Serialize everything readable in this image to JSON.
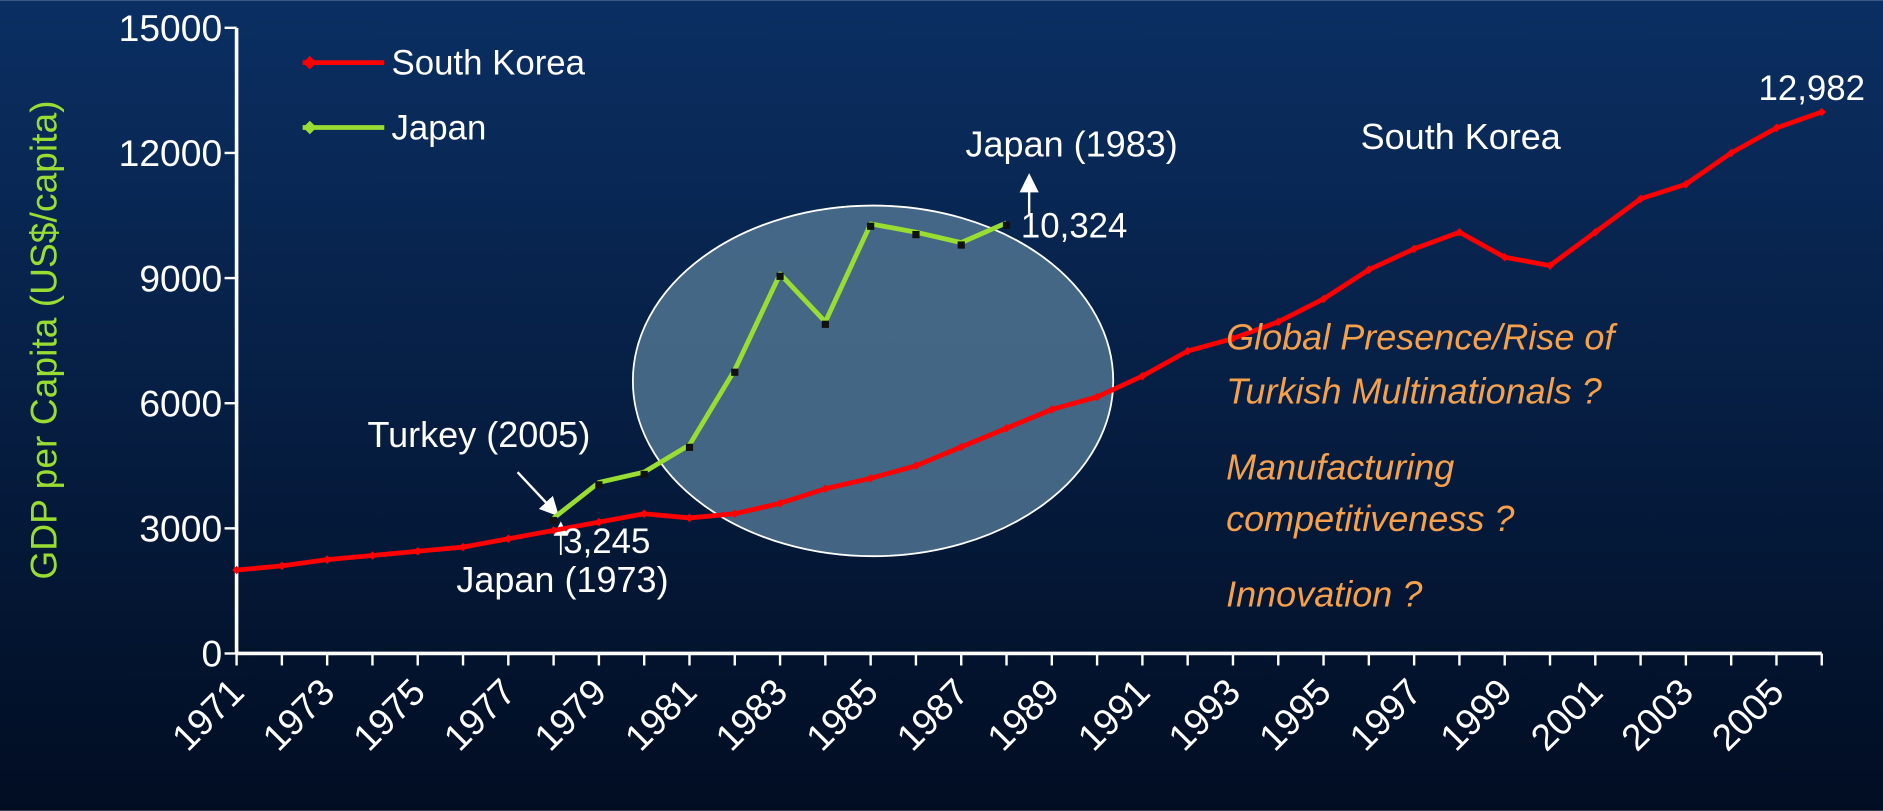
{
  "chart_data": {
    "type": "line",
    "ylabel": "GDP per Capita (US$/capita)",
    "categories": [
      "1971",
      null,
      "1973",
      null,
      "1975",
      null,
      "1977",
      null,
      "1979",
      null,
      "1981",
      null,
      "1983",
      null,
      "1985",
      null,
      "1987",
      null,
      "1989",
      null,
      "1991",
      null,
      "1993",
      null,
      "1995",
      null,
      "1997",
      null,
      "1999",
      null,
      "2001",
      null,
      "2003",
      null,
      "2005",
      null
    ],
    "ylim": [
      0,
      15000
    ],
    "yticks": [
      0,
      3000,
      6000,
      9000,
      12000,
      15000
    ],
    "legend": "upper left",
    "series": [
      {
        "name": "South Korea",
        "color": "#ff0000",
        "values": [
          2000,
          2100,
          2250,
          2350,
          2450,
          2550,
          2750,
          2950,
          3150,
          3350,
          3250,
          3350,
          3600,
          3950,
          4200,
          4500,
          4950,
          5400,
          5850,
          6150,
          6650,
          7250,
          7550,
          7950,
          8500,
          9200,
          9700,
          10100,
          9500,
          9300,
          10100,
          10900,
          11250,
          12000,
          12600,
          12982
        ],
        "value_labels": [
          null,
          null,
          null,
          null,
          null,
          null,
          null,
          null,
          null,
          null,
          null,
          null,
          null,
          null,
          null,
          null,
          null,
          null,
          null,
          null,
          null,
          null,
          null,
          null,
          null,
          null,
          null,
          null,
          null,
          null,
          null,
          null,
          null,
          null,
          null,
          "12,982"
        ]
      },
      {
        "name": "Japan",
        "color": "#99dd33",
        "values": [
          null,
          null,
          null,
          null,
          null,
          null,
          null,
          3245,
          4100,
          4350,
          5000,
          6800,
          9100,
          7950,
          10300,
          10100,
          9850,
          10324,
          null,
          null,
          null,
          null,
          null,
          null,
          null,
          null,
          null,
          null,
          null,
          null,
          null,
          null,
          null,
          null,
          null,
          null
        ],
        "value_labels": [
          null,
          null,
          null,
          null,
          null,
          null,
          null,
          "3,245",
          null,
          null,
          null,
          null,
          null,
          null,
          null,
          null,
          null,
          "10,324",
          null,
          null,
          null,
          null,
          null,
          null,
          null,
          null,
          null,
          null,
          null,
          null,
          null,
          null,
          null,
          null,
          null,
          null
        ]
      }
    ],
    "annotations": [
      "Turkey (2005)",
      "Japan (1973)",
      "Japan (1983)",
      "South Korea",
      "Global Presence/Rise of",
      "Turkish Multinationals ?",
      "Manufacturing",
      "competitiveness ?",
      "Innovation ?"
    ]
  }
}
